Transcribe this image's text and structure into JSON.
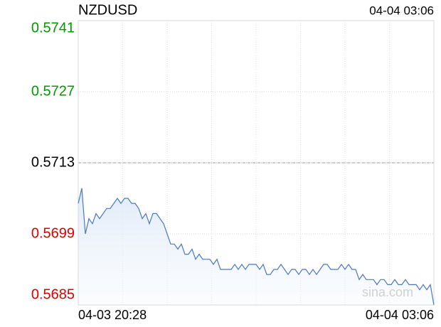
{
  "chart_data": {
    "type": "line",
    "title": "NZDUSD",
    "timestamp": "04-04 03:06",
    "watermark": "sina.com",
    "categories": [
      "04-03 20:28",
      null,
      null,
      null,
      null,
      null,
      null,
      null,
      null,
      null,
      null,
      null,
      null,
      null,
      null,
      null,
      null,
      null,
      null,
      null,
      null,
      null,
      null,
      null,
      null,
      null,
      null,
      null,
      null,
      null,
      null,
      null,
      null,
      null,
      null,
      null,
      null,
      null,
      null,
      null,
      null,
      null,
      null,
      null,
      null,
      null,
      null,
      null,
      null,
      null,
      null,
      null,
      null,
      null,
      null,
      null,
      null,
      null,
      null,
      null,
      null,
      null,
      null,
      null,
      null,
      null,
      null,
      null,
      null,
      null,
      null,
      null,
      null,
      null,
      null,
      null,
      null,
      null,
      null,
      null,
      null,
      null,
      null,
      null,
      null,
      null,
      null,
      null,
      null,
      null,
      null,
      null,
      null,
      null,
      null,
      null,
      null,
      null,
      null,
      null,
      "04-04 03:06"
    ],
    "series": [
      {
        "name": "NZDUSD",
        "color": "#4a78c2",
        "values": [
          0.5705,
          0.5708,
          0.5699,
          0.5702,
          0.5701,
          0.5703,
          0.5702,
          0.5703,
          0.5704,
          0.5704,
          0.5705,
          0.5706,
          0.5705,
          0.5706,
          0.5706,
          0.5705,
          0.5705,
          0.5704,
          0.5702,
          0.5703,
          0.5701,
          0.5703,
          0.5703,
          0.5702,
          0.5701,
          0.5699,
          0.5697,
          0.5697,
          0.5696,
          0.5697,
          0.5695,
          0.5695,
          0.5696,
          0.5694,
          0.5695,
          0.5694,
          0.5694,
          0.5694,
          0.5693,
          0.5694,
          0.5692,
          0.5692,
          0.5692,
          0.5692,
          0.5693,
          0.5692,
          0.5693,
          0.5692,
          0.5693,
          0.5693,
          0.5693,
          0.5692,
          0.5693,
          0.5691,
          0.5691,
          0.5692,
          0.5692,
          0.5693,
          0.5692,
          0.5691,
          0.5692,
          0.5692,
          0.5691,
          0.5692,
          0.5692,
          0.5691,
          0.5692,
          0.5691,
          0.5692,
          0.5693,
          0.5693,
          0.5692,
          0.5692,
          0.5692,
          0.5693,
          0.5692,
          0.5693,
          0.5692,
          0.5692,
          0.569,
          0.5691,
          0.569,
          0.569,
          0.569,
          0.5689,
          0.569,
          0.569,
          0.5689,
          0.5689,
          0.569,
          0.5689,
          0.5689,
          0.569,
          0.5689,
          0.5689,
          0.5689,
          0.5688,
          0.5689,
          0.5688,
          0.5689,
          0.5685
        ]
      }
    ],
    "ylim": [
      0.5685,
      0.5741
    ],
    "yticks": [
      0.5685,
      0.5699,
      0.5713,
      0.5727,
      0.5741
    ],
    "reference_value": 0.5713,
    "up_color": "#009900",
    "down_color": "#dd0000",
    "flat_color": "#000000",
    "grid": true
  }
}
